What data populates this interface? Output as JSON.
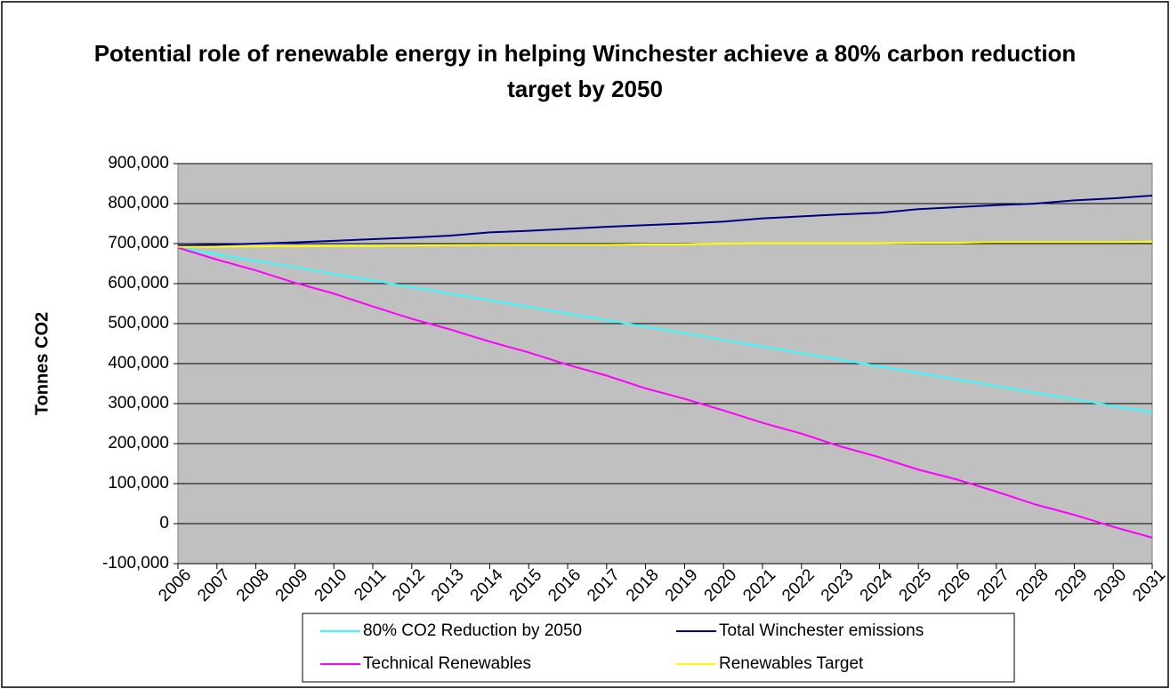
{
  "chart_data": {
    "type": "line",
    "title": "Potential role of renewable energy in helping Winchester achieve a 80% carbon reduction target by 2050",
    "y_label": "Tonnes CO2",
    "categories": [
      "2006",
      "2007",
      "2008",
      "2009",
      "2010",
      "2011",
      "2012",
      "2013",
      "2014",
      "2015",
      "2016",
      "2017",
      "2018",
      "2019",
      "2020",
      "2021",
      "2022",
      "2023",
      "2024",
      "2025",
      "2026",
      "2027",
      "2028",
      "2029",
      "2030",
      "2031"
    ],
    "series": [
      {
        "name": "80% CO2 Reduction by 2050",
        "color": "#33ffff",
        "values": [
          690000,
          673000,
          657000,
          641000,
          624000,
          608000,
          591000,
          575000,
          558000,
          542000,
          525000,
          509000,
          492000,
          476000,
          459000,
          443000,
          426000,
          410000,
          393000,
          377000,
          360000,
          344000,
          327000,
          311000,
          294000,
          278000
        ]
      },
      {
        "name": "Total Winchester emissions",
        "color": "#000080",
        "values": [
          695000,
          697000,
          700000,
          703000,
          707000,
          711000,
          715000,
          720000,
          728000,
          732000,
          737000,
          742000,
          746000,
          750000,
          755000,
          763000,
          768000,
          773000,
          777000,
          786000,
          791000,
          796000,
          800000,
          808000,
          813000,
          820000
        ]
      },
      {
        "name": "Technical Renewables",
        "color": "#ff00ff",
        "values": [
          690000,
          660000,
          633000,
          602000,
          575000,
          543000,
          512000,
          485000,
          455000,
          428000,
          397000,
          370000,
          338000,
          312000,
          283000,
          252000,
          225000,
          193000,
          166000,
          135000,
          110000,
          80000,
          48000,
          22000,
          -8000,
          -35000
        ]
      },
      {
        "name": "Renewables Target",
        "color": "#ffff00",
        "values": [
          692000,
          692000,
          693000,
          693000,
          694000,
          694000,
          695000,
          696000,
          697000,
          697000,
          697000,
          697000,
          698000,
          698000,
          700000,
          701000,
          701000,
          701000,
          701000,
          702000,
          702000,
          704000,
          704000,
          704000,
          704000,
          705000
        ]
      }
    ],
    "ylim": [
      -100000,
      900000
    ],
    "yticks": [
      {
        "value": -100000,
        "label": "-100,000"
      },
      0,
      {
        "value": 100000,
        "label": "100,000"
      },
      {
        "value": 200000,
        "label": "200,000"
      },
      {
        "value": 300000,
        "label": "300,000"
      },
      {
        "value": 400000,
        "label": "400,000"
      },
      {
        "value": 500000,
        "label": "500,000"
      },
      {
        "value": 600000,
        "label": "600,000"
      },
      {
        "value": 700000,
        "label": "700,000"
      },
      {
        "value": 800000,
        "label": "800,000"
      },
      {
        "value": 900000,
        "label": "900,000"
      }
    ],
    "grid": true,
    "legend": "bottom",
    "plot_background": "#c0c0c0"
  }
}
